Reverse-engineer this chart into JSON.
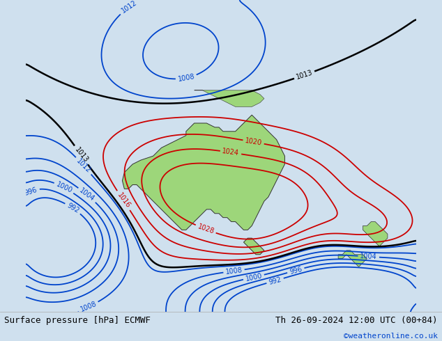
{
  "title_left": "Surface pressure [hPa] ECMWF",
  "title_right": "Th 26-09-2024 12:00 UTC (00+84)",
  "credit": "©weatheronline.co.uk",
  "bg_color": "#cfe0ee",
  "land_color": "#9dd67a",
  "border_color": "#555555",
  "ocean_color": "#cfe0ee",
  "figsize": [
    6.34,
    4.9
  ],
  "dpi": 100,
  "map_extent": [
    90,
    185,
    -58,
    18
  ],
  "pressure_levels_red": [
    1016,
    1020,
    1024,
    1028
  ],
  "pressure_levels_blue": [
    992,
    996,
    1000,
    1004,
    1008,
    1012
  ],
  "pressure_levels_black": [
    1013
  ],
  "contour_red": "#cc0000",
  "contour_blue": "#0044cc",
  "contour_black": "#000000",
  "label_fontsize": 7,
  "bottom_bar_height": 0.085
}
